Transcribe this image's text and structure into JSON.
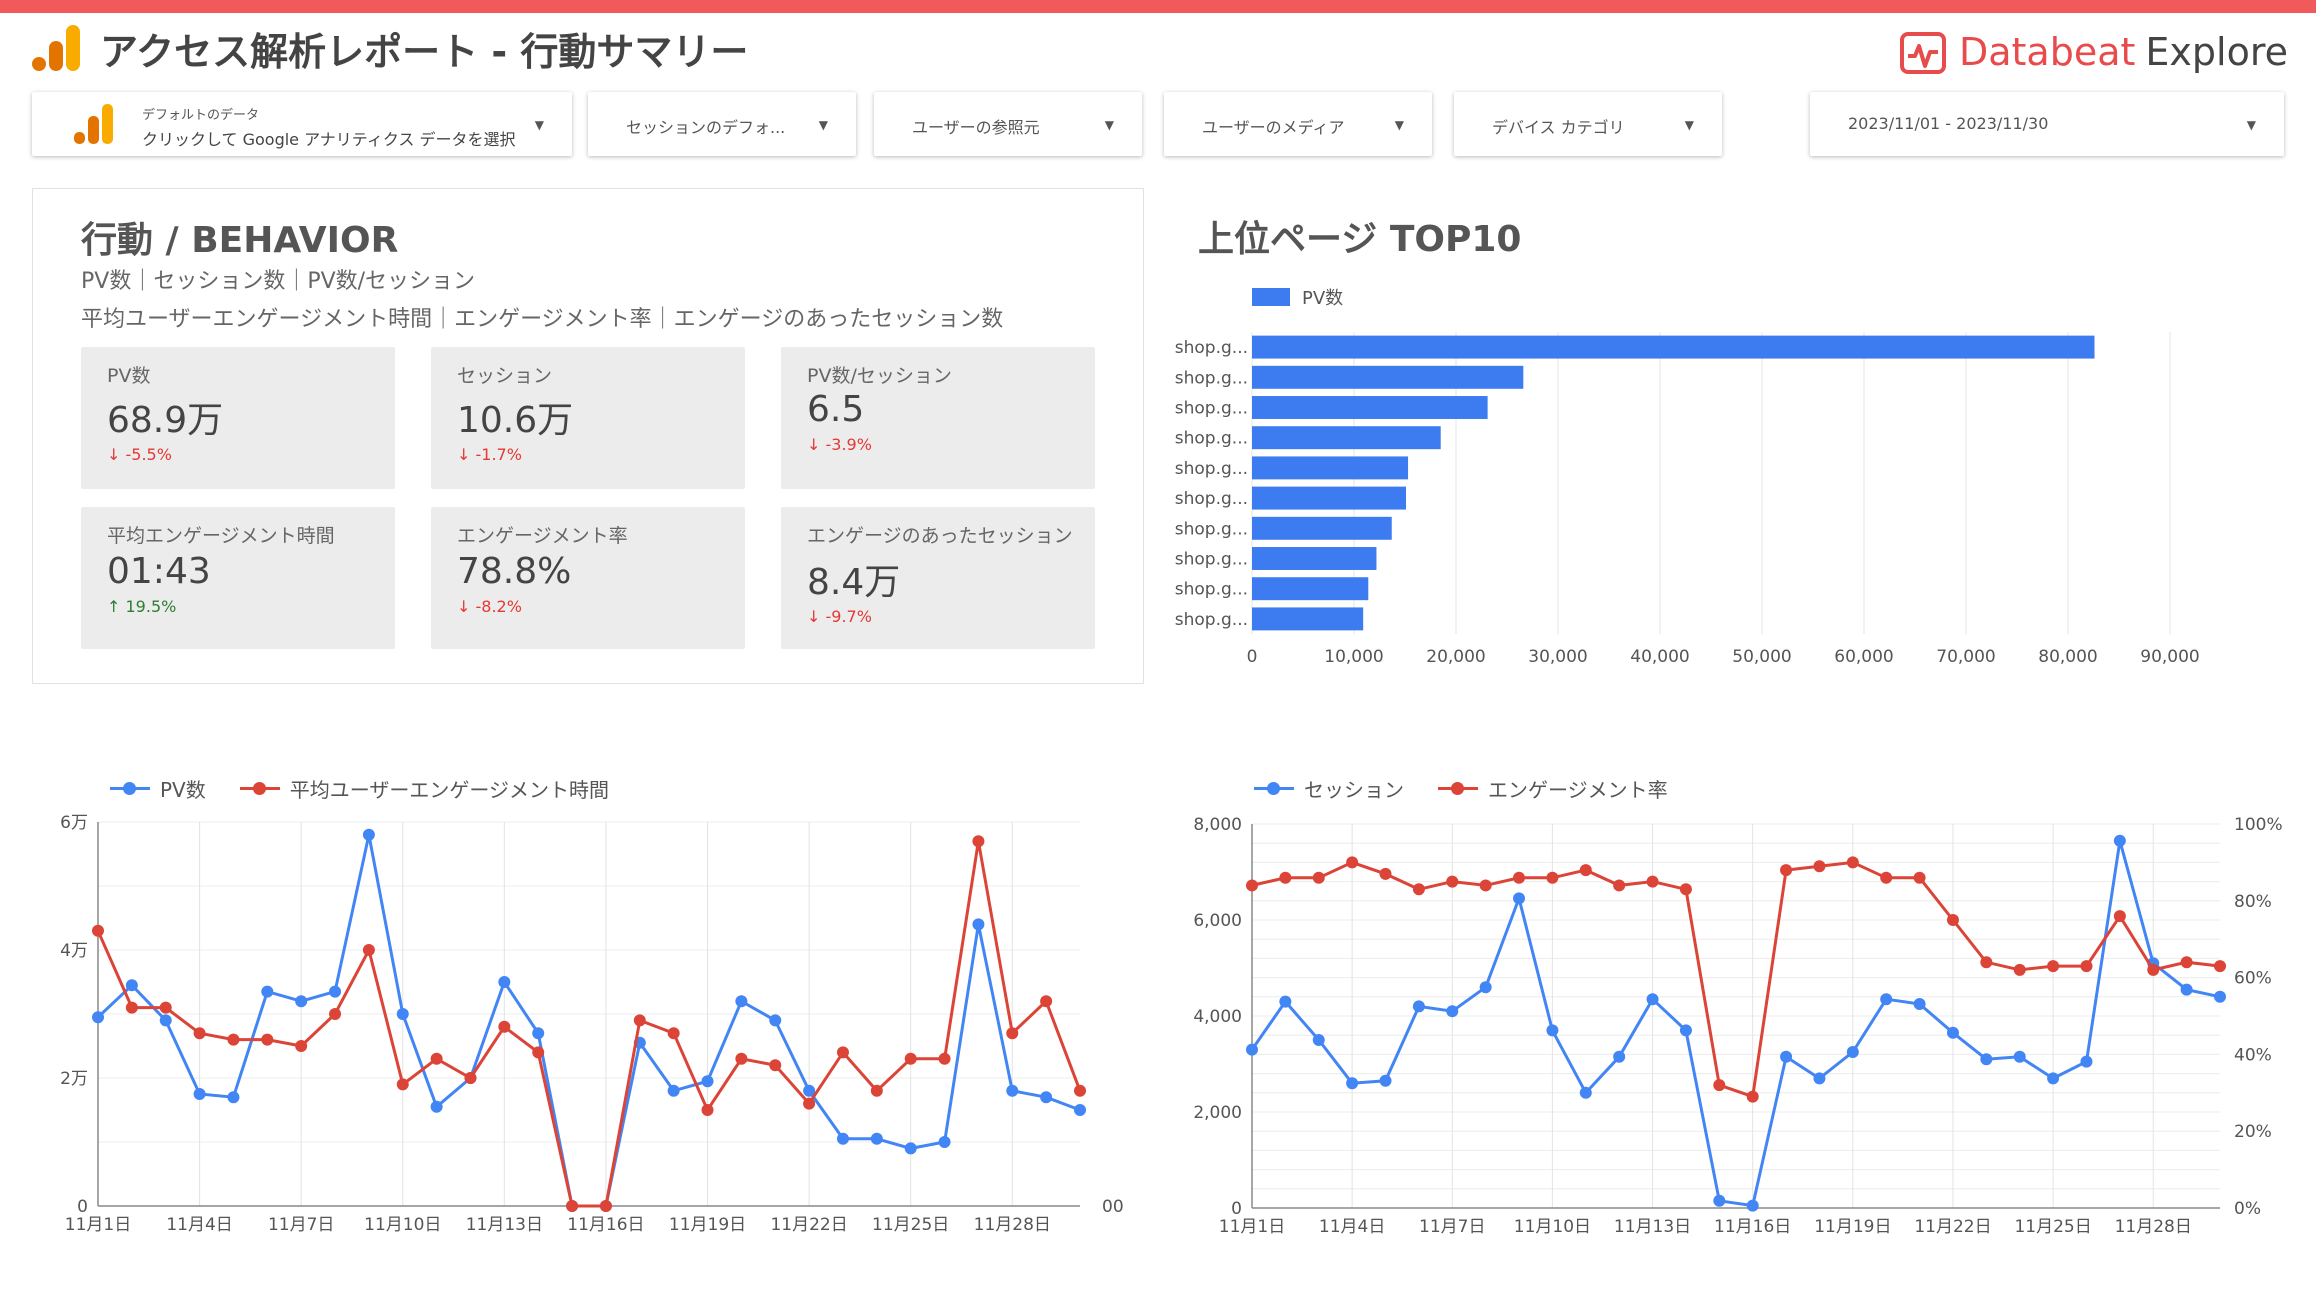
{
  "header": {
    "title": "アクセス解析レポート - 行動サマリー",
    "brand_name": "Databeat",
    "brand_sub": "Explore",
    "accent_color": "#f05a5a"
  },
  "filters": {
    "datasource_label": "デフォルトのデータ",
    "datasource_value": "クリックして Google アナリティクス データを選択",
    "session_default": "セッションのデフォ...",
    "user_source": "ユーザーの参照元",
    "user_medium": "ユーザーのメディア",
    "device_category": "デバイス カテゴリ",
    "date_range": "2023/11/01 - 2023/11/30"
  },
  "behavior": {
    "title": "行動 / BEHAVIOR",
    "subtitle1": "PV数｜セッション数｜PV数/セッション",
    "subtitle2": "平均ユーザーエンゲージメント時間｜エンゲージメント率｜エンゲージのあったセッション数",
    "kpis": [
      {
        "label": "PV数",
        "value": "68.9万",
        "delta": "-5.5%",
        "direction": "down"
      },
      {
        "label": "セッション",
        "value": "10.6万",
        "delta": "-1.7%",
        "direction": "down"
      },
      {
        "label": "PV数/セッション",
        "value": "6.5",
        "delta": "-3.9%",
        "direction": "down"
      },
      {
        "label": "平均エンゲージメント時間",
        "value": "01:43",
        "delta": "19.5%",
        "direction": "up"
      },
      {
        "label": "エンゲージメント率",
        "value": "78.8%",
        "delta": "-8.2%",
        "direction": "down"
      },
      {
        "label": "エンゲージのあったセッション",
        "value": "8.4万",
        "delta": "-9.7%",
        "direction": "down"
      }
    ]
  },
  "top_pages": {
    "title": "上位ページ TOP10"
  },
  "colors": {
    "blue": "#4285f4",
    "red": "#db4437",
    "bar": "#3d7bf0"
  },
  "chart_data": [
    {
      "type": "bar",
      "orientation": "horizontal",
      "series": [
        {
          "name": "PV数",
          "values": [
            82600,
            26600,
            23100,
            18500,
            15300,
            15100,
            13700,
            12200,
            11400,
            10900
          ]
        }
      ],
      "categories": [
        "shop.g...",
        "shop.g...",
        "shop.g...",
        "shop.g...",
        "shop.g...",
        "shop.g...",
        "shop.g...",
        "shop.g...",
        "shop.g...",
        "shop.g..."
      ],
      "xlim": [
        0,
        90000
      ],
      "xticks": [
        "0",
        "10,000",
        "20,000",
        "30,000",
        "40,000",
        "50,000",
        "60,000",
        "70,000",
        "80,000",
        "90,000"
      ],
      "grid": true,
      "legend": "top-left"
    },
    {
      "type": "line",
      "x": [
        "11月1日",
        "11月2日",
        "11月3日",
        "11月4日",
        "11月5日",
        "11月6日",
        "11月7日",
        "11月8日",
        "11月9日",
        "11月10日",
        "11月11日",
        "11月12日",
        "11月13日",
        "11月14日",
        "11月15日",
        "11月16日",
        "11月17日",
        "11月18日",
        "11月19日",
        "11月20日",
        "11月21日",
        "11月22日",
        "11月23日",
        "11月24日",
        "11月25日",
        "11月26日",
        "11月27日",
        "11月28日",
        "11月29日",
        "11月30日"
      ],
      "xticks": [
        "11月1日",
        "11月4日",
        "11月7日",
        "11月10日",
        "11月13日",
        "11月16日",
        "11月19日",
        "11月22日",
        "11月25日",
        "11月28日"
      ],
      "series": [
        {
          "name": "PV数",
          "axis": "left",
          "values": [
            29500,
            34500,
            29000,
            17500,
            17000,
            33500,
            32000,
            33500,
            58000,
            30000,
            15500,
            20000,
            35000,
            27000,
            0,
            0,
            25500,
            18000,
            19500,
            32000,
            29000,
            18000,
            10500,
            10500,
            9000,
            10000,
            44000,
            18000,
            17000,
            15000
          ]
        },
        {
          "name": "平均ユーザーエンゲージメント時間",
          "axis": "right",
          "values": [
            43,
            31,
            31,
            27,
            26,
            26,
            25,
            30,
            40,
            19,
            23,
            20,
            28,
            24,
            0,
            0,
            29,
            27,
            15,
            23,
            22,
            16,
            24,
            18,
            23,
            23,
            57,
            27,
            32,
            18
          ]
        }
      ],
      "y_left_ticks": [
        "0",
        "2万",
        "4万",
        "6万"
      ],
      "y_left_range": [
        0,
        60000
      ],
      "y_right_ticks": [
        "00"
      ],
      "grid": true,
      "legend": "top-left"
    },
    {
      "type": "line",
      "x": [
        "11月1日",
        "11月2日",
        "11月3日",
        "11月4日",
        "11月5日",
        "11月6日",
        "11月7日",
        "11月8日",
        "11月9日",
        "11月10日",
        "11月11日",
        "11月12日",
        "11月13日",
        "11月14日",
        "11月15日",
        "11月16日",
        "11月17日",
        "11月18日",
        "11月19日",
        "11月20日",
        "11月21日",
        "11月22日",
        "11月23日",
        "11月24日",
        "11月25日",
        "11月26日",
        "11月27日",
        "11月28日",
        "11月29日",
        "11月30日"
      ],
      "xticks": [
        "11月1日",
        "11月4日",
        "11月7日",
        "11月10日",
        "11月13日",
        "11月16日",
        "11月19日",
        "11月22日",
        "11月25日",
        "11月28日"
      ],
      "series": [
        {
          "name": "セッション",
          "axis": "left",
          "values": [
            3300,
            4300,
            3500,
            2600,
            2650,
            4200,
            4100,
            4600,
            6450,
            3700,
            2400,
            3150,
            4350,
            3700,
            150,
            50,
            3150,
            2700,
            3250,
            4350,
            4250,
            3650,
            3100,
            3150,
            2700,
            3050,
            7650,
            5100,
            4550,
            4400
          ]
        },
        {
          "name": "エンゲージメント率",
          "axis": "right",
          "values": [
            84,
            86,
            86,
            90,
            87,
            83,
            85,
            84,
            86,
            86,
            88,
            84,
            85,
            83,
            32,
            29,
            88,
            89,
            90,
            86,
            86,
            75,
            64,
            62,
            63,
            63,
            76,
            62,
            64,
            63
          ]
        }
      ],
      "y_left_ticks": [
        "0",
        "2,000",
        "4,000",
        "6,000",
        "8,000"
      ],
      "y_left_range": [
        0,
        8000
      ],
      "y_right_ticks": [
        "0%",
        "20%",
        "40%",
        "60%",
        "80%",
        "100%"
      ],
      "y_right_range": [
        0,
        100
      ],
      "grid": true,
      "legend": "top-left"
    }
  ]
}
